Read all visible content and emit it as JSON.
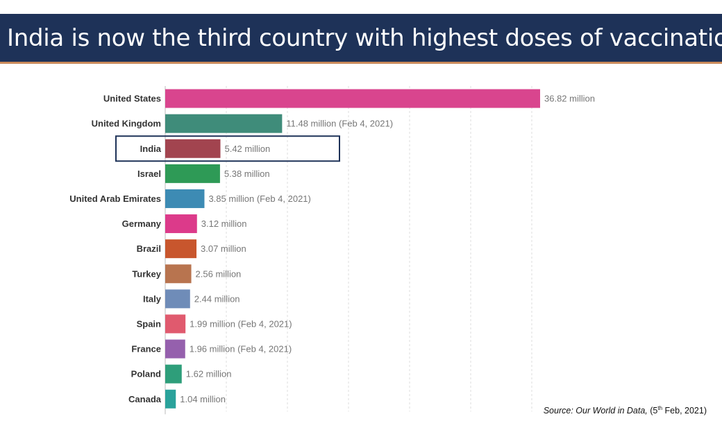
{
  "title": "India is now the third country with highest doses of vaccination",
  "source": {
    "prefix": "Source: Our World in Data,",
    "date_day": "(5",
    "date_sup": "th",
    "date_rest": " Feb, 2021)"
  },
  "chart_data": {
    "type": "bar",
    "orientation": "horizontal",
    "unit": "million",
    "categories": [
      "United States",
      "United Kingdom",
      "India",
      "Israel",
      "United Arab Emirates",
      "Germany",
      "Brazil",
      "Turkey",
      "Italy",
      "Spain",
      "France",
      "Poland",
      "Canada"
    ],
    "values": [
      36.82,
      11.48,
      5.42,
      5.38,
      3.85,
      3.12,
      3.07,
      2.56,
      2.44,
      1.99,
      1.96,
      1.62,
      1.04
    ],
    "value_labels": [
      "36.82 million",
      "11.48 million (Feb 4, 2021)",
      "5.42 million",
      "5.38 million",
      "3.85 million (Feb 4, 2021)",
      "3.12 million",
      "3.07 million",
      "2.56 million",
      "2.44 million",
      "1.99 million (Feb 4, 2021)",
      "1.96 million (Feb 4, 2021)",
      "1.62 million",
      "1.04 million"
    ],
    "colors": [
      "#d9458e",
      "#3f8c7a",
      "#a2444f",
      "#2e9a56",
      "#3d8bb4",
      "#dc3a8a",
      "#c8562d",
      "#b8744f",
      "#6f8cb8",
      "#e05a6e",
      "#9560ad",
      "#2e9e7a",
      "#2aa29b"
    ],
    "highlight": "India",
    "highlight_color": "#1e3258",
    "xlim": [
      0,
      36.82
    ],
    "grid": "vertical dashed",
    "legend": "none"
  }
}
